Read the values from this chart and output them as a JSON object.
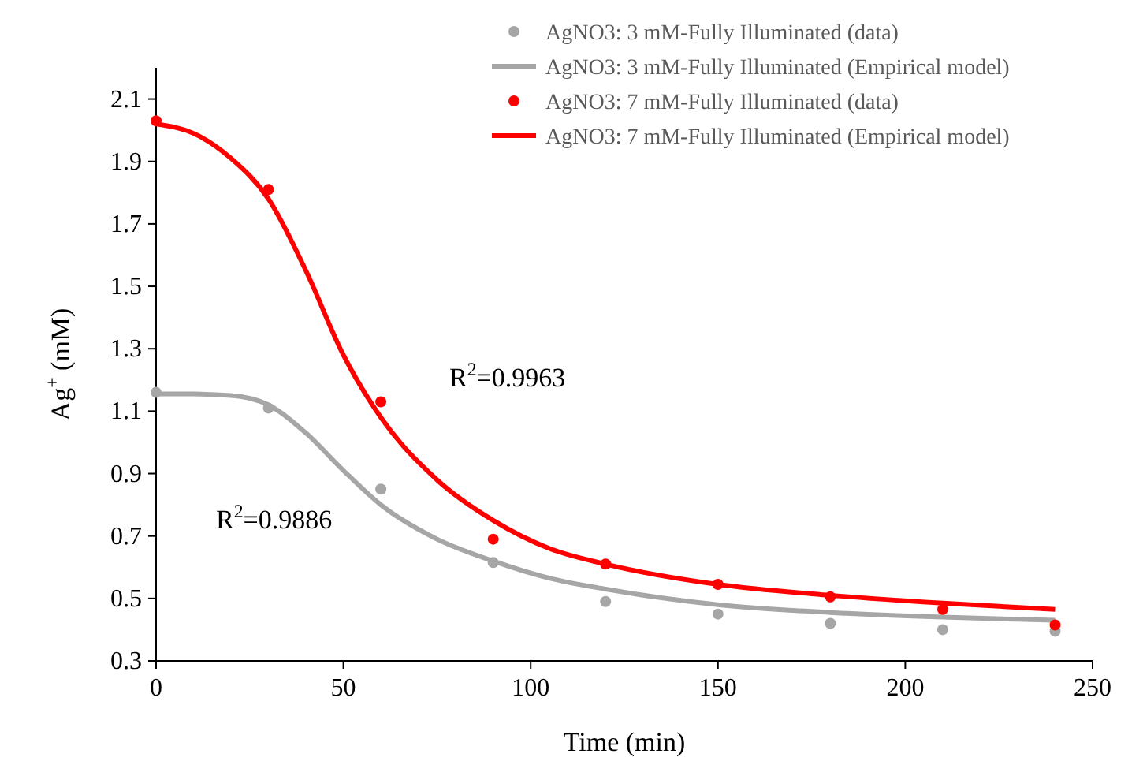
{
  "chart_data": {
    "type": "line",
    "xlabel": "Time (min)",
    "ylabel": "Ag$^{+}$ (mM)",
    "xlim": [
      0,
      250
    ],
    "xticks": [
      0,
      50,
      100,
      150,
      200,
      250
    ],
    "ylim": [
      0.3,
      2.2
    ],
    "yticks": [
      0.3,
      0.5,
      0.7,
      0.9,
      1.1,
      1.3,
      1.5,
      1.7,
      1.9,
      2.1
    ],
    "grid": false,
    "legend": "top right",
    "series": [
      {
        "name": "AgNO3: 3 mM-Fully Illuminated (data)",
        "type": "scatter",
        "marker": "circle",
        "color": "#a6a6a6",
        "x": [
          0,
          30,
          60,
          90,
          120,
          150,
          180,
          210,
          240
        ],
        "values": [
          1.16,
          1.11,
          0.85,
          0.615,
          0.49,
          0.45,
          0.42,
          0.4,
          0.395
        ]
      },
      {
        "name": "AgNO3: 3 mM-Fully Illuminated (Empirical model)",
        "marker": "none",
        "color": "#a6a6a6",
        "x": [
          0,
          10,
          20,
          30,
          40,
          50,
          60,
          75,
          90,
          105,
          120,
          150,
          180,
          210,
          240
        ],
        "values": [
          1.155,
          1.155,
          1.15,
          1.12,
          1.03,
          0.91,
          0.8,
          0.69,
          0.62,
          0.565,
          0.53,
          0.48,
          0.455,
          0.44,
          0.43
        ]
      },
      {
        "name": "AgNO3: 7 mM-Fully Illuminated (data)",
        "type": "scatter",
        "marker": "circle",
        "color": "#ff0000",
        "x": [
          0,
          30,
          60,
          90,
          120,
          150,
          180,
          210,
          240
        ],
        "values": [
          2.03,
          1.81,
          1.13,
          0.69,
          0.61,
          0.545,
          0.505,
          0.465,
          0.415
        ]
      },
      {
        "name": "AgNO3: 7 mM-Fully Illuminated (Empirical model)",
        "marker": "none",
        "color": "#ff0000",
        "x": [
          0,
          10,
          20,
          30,
          40,
          50,
          60,
          75,
          90,
          105,
          120,
          150,
          180,
          210,
          240
        ],
        "values": [
          2.02,
          1.99,
          1.91,
          1.78,
          1.55,
          1.28,
          1.08,
          0.88,
          0.75,
          0.66,
          0.61,
          0.545,
          0.51,
          0.485,
          0.465
        ]
      }
    ],
    "annotations": [
      "R$^{2}$=0.9963",
      "R$^{2}$=0.9886"
    ]
  }
}
